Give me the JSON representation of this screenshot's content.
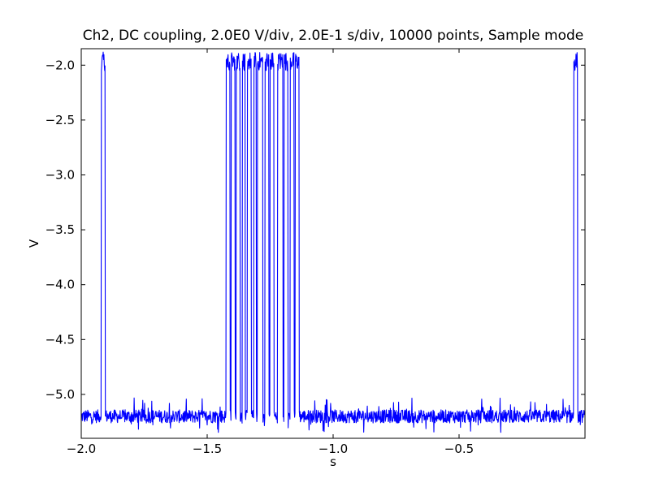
{
  "chart_data": {
    "type": "line",
    "title": "Ch2, DC coupling, 2.0E0 V/div, 2.0E-1 s/div, 10000 points, Sample mode",
    "xlabel": "s",
    "ylabel": "V",
    "xlim": [
      -2.0,
      0.0
    ],
    "ylim": [
      -5.4,
      -1.85
    ],
    "x_ticks": [
      -2.0,
      -1.5,
      -1.0,
      -0.5
    ],
    "x_tick_labels": [
      "−2.0",
      "−1.5",
      "−1.0",
      "−0.5"
    ],
    "y_ticks": [
      -2.0,
      -2.5,
      -3.0,
      -3.5,
      -4.0,
      -4.5,
      -5.0
    ],
    "y_tick_labels": [
      "−2.0",
      "−2.5",
      "−3.0",
      "−3.5",
      "−4.0",
      "−4.5",
      "−5.0"
    ],
    "grid": false,
    "legend": "none",
    "series": [
      {
        "color": "#0000ff",
        "low_level": -5.2,
        "low_noise_range": [
          -5.35,
          -5.03
        ],
        "high_level": -1.95,
        "high_noise_range": [
          -2.05,
          -1.88
        ],
        "high_intervals": [
          [
            -1.92,
            -1.905
          ],
          [
            -1.425,
            -1.41
          ],
          [
            -1.405,
            -1.39
          ],
          [
            -1.385,
            -1.37
          ],
          [
            -1.36,
            -1.35
          ],
          [
            -1.34,
            -1.325
          ],
          [
            -1.315,
            -1.305
          ],
          [
            -1.3,
            -1.28
          ],
          [
            -1.27,
            -1.255
          ],
          [
            -1.25,
            -1.235
          ],
          [
            -1.22,
            -1.2
          ],
          [
            -1.195,
            -1.18
          ],
          [
            -1.17,
            -1.155
          ],
          [
            -1.15,
            -1.135
          ],
          [
            -0.045,
            -0.03
          ]
        ]
      }
    ]
  }
}
